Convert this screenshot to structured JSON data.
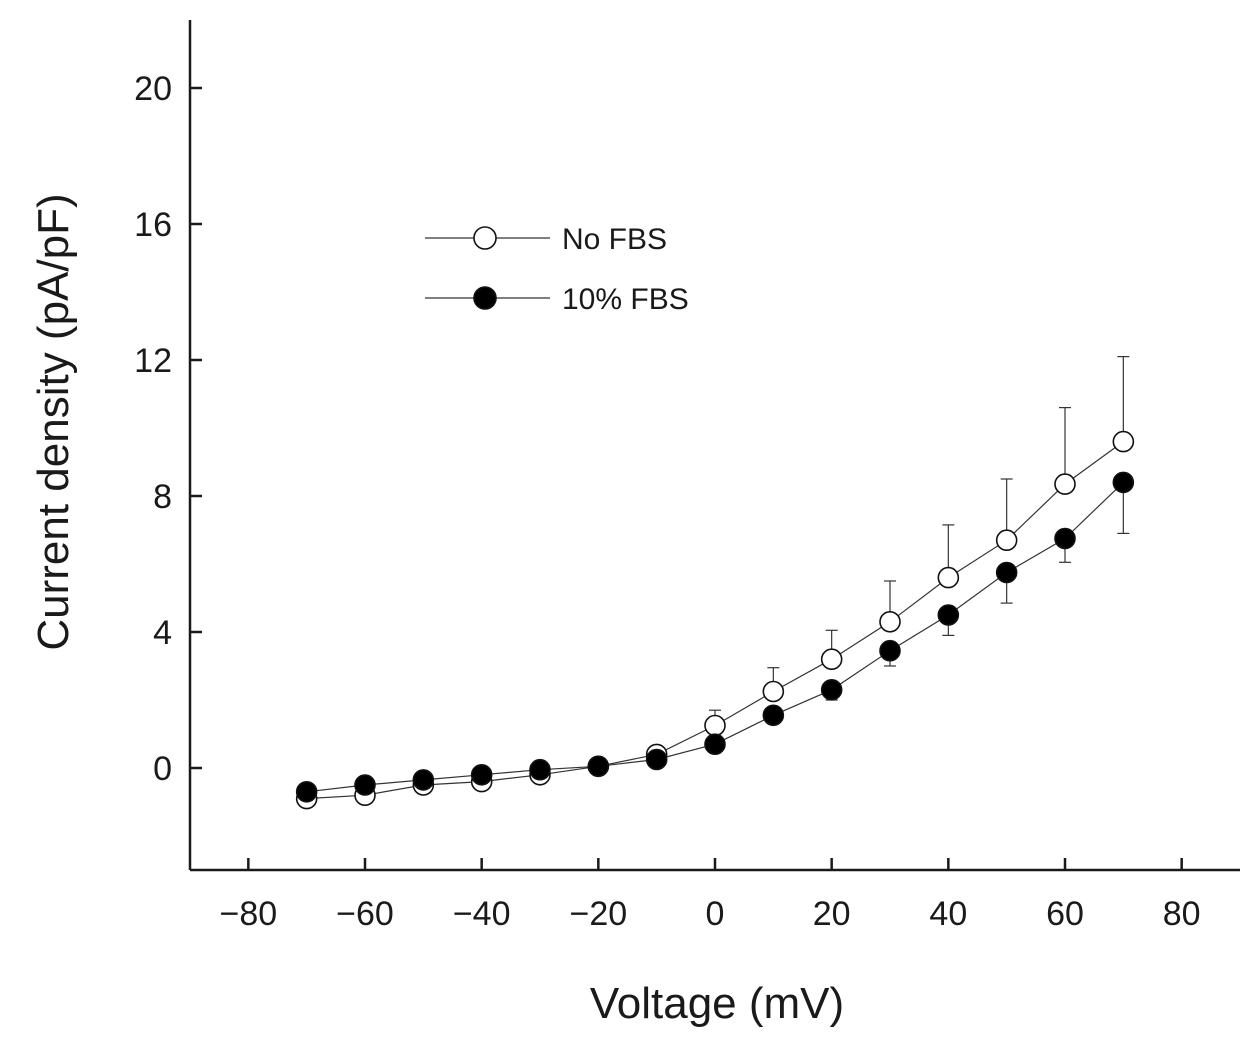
{
  "chart_data": {
    "type": "scatter",
    "xlabel": "Voltage (mV)",
    "ylabel": "Current density (pA/pF)",
    "xlim": [
      -90,
      90
    ],
    "ylim": [
      -3,
      22
    ],
    "xticks": [
      -80,
      -60,
      -40,
      -20,
      0,
      20,
      40,
      60,
      80
    ],
    "yticks": [
      0,
      4,
      8,
      12,
      16,
      20
    ],
    "xtick_labels": [
      "−80",
      "−60",
      "−40",
      "−20",
      "0",
      "20",
      "40",
      "60",
      "80"
    ],
    "ytick_labels": [
      "0",
      "4",
      "8",
      "12",
      "16",
      "20"
    ],
    "legend_position": "upper-left-center",
    "x": [
      -70,
      -60,
      -50,
      -40,
      -30,
      -20,
      -10,
      0,
      10,
      20,
      30,
      40,
      50,
      60,
      70
    ],
    "series": [
      {
        "name": "No FBS",
        "marker": "open-circle",
        "values": [
          -0.9,
          -0.8,
          -0.5,
          -0.4,
          -0.2,
          0.05,
          0.4,
          1.25,
          2.25,
          3.2,
          4.3,
          5.6,
          6.7,
          8.35,
          9.6
        ],
        "errors": [
          0.3,
          0.3,
          0.3,
          0.3,
          0.3,
          0.2,
          0.2,
          0.45,
          0.7,
          0.85,
          1.2,
          1.55,
          1.8,
          2.25,
          2.5
        ],
        "error_direction": "up"
      },
      {
        "name": "10% FBS",
        "marker": "filled-circle",
        "values": [
          -0.7,
          -0.5,
          -0.35,
          -0.2,
          -0.05,
          0.05,
          0.25,
          0.7,
          1.55,
          2.3,
          3.45,
          4.5,
          5.75,
          6.75,
          8.4
        ],
        "errors": [
          0.25,
          0.25,
          0.25,
          0.25,
          0.25,
          0.2,
          0.15,
          0.2,
          0.2,
          0.3,
          0.45,
          0.6,
          0.9,
          0.7,
          1.5
        ],
        "error_direction": "down"
      }
    ],
    "colors": {
      "axis": "#1a1a1a",
      "marker_stroke": "#111111",
      "open_fill": "#ffffff",
      "filled_fill": "#000000",
      "line": "#333333"
    }
  }
}
